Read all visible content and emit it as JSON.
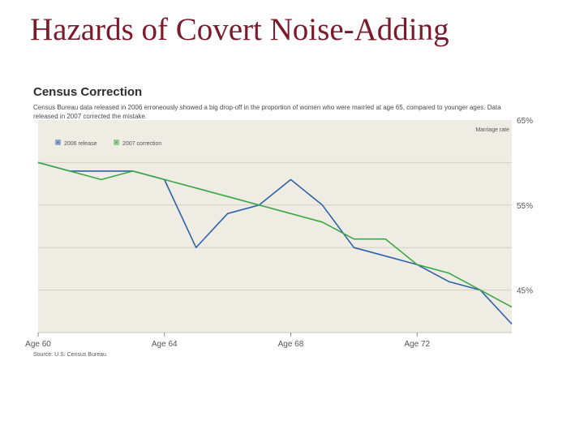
{
  "slide": {
    "title": "Hazards of Covert Noise-Adding"
  },
  "chart_data": {
    "type": "line",
    "title": "Census Correction",
    "subtitle": "Census Bureau data released in 2006 erroneously showed a big drop-off in the proportion of women who were married at age 65, compared to younger ages. Data released in 2007 corrected the mistake.",
    "ylabel": "Marriage rate",
    "source": "Source: U.S. Census Bureau",
    "x_range": [
      60,
      75
    ],
    "ylim": [
      40,
      65
    ],
    "x_ticks": [
      {
        "value": 60,
        "label": "Age 60"
      },
      {
        "value": 64,
        "label": "Age 64"
      },
      {
        "value": 68,
        "label": "Age 68"
      },
      {
        "value": 72,
        "label": "Age 72"
      }
    ],
    "y_ticks": [
      {
        "value": 65,
        "label": "65%"
      },
      {
        "value": 55,
        "label": "55%"
      },
      {
        "value": 45,
        "label": "45%"
      }
    ],
    "y_gridlines": [
      60,
      55,
      50,
      45
    ],
    "series": [
      {
        "name": "2006 release",
        "color": "#2f62a8",
        "x": [
          60,
          61,
          62,
          63,
          64,
          65,
          66,
          67,
          68,
          69,
          70,
          71,
          72,
          73,
          74,
          75
        ],
        "values": [
          60,
          59,
          59,
          59,
          58,
          50,
          54,
          55,
          58,
          55,
          50,
          49,
          48,
          46,
          45,
          41
        ]
      },
      {
        "name": "2007 correction",
        "color": "#3aa845",
        "x": [
          60,
          61,
          62,
          63,
          64,
          65,
          66,
          67,
          68,
          69,
          70,
          71,
          72,
          73,
          74,
          75
        ],
        "values": [
          60,
          59,
          58,
          59,
          58,
          57,
          56,
          55,
          54,
          53,
          51,
          51,
          48,
          47,
          45,
          43
        ]
      }
    ]
  }
}
